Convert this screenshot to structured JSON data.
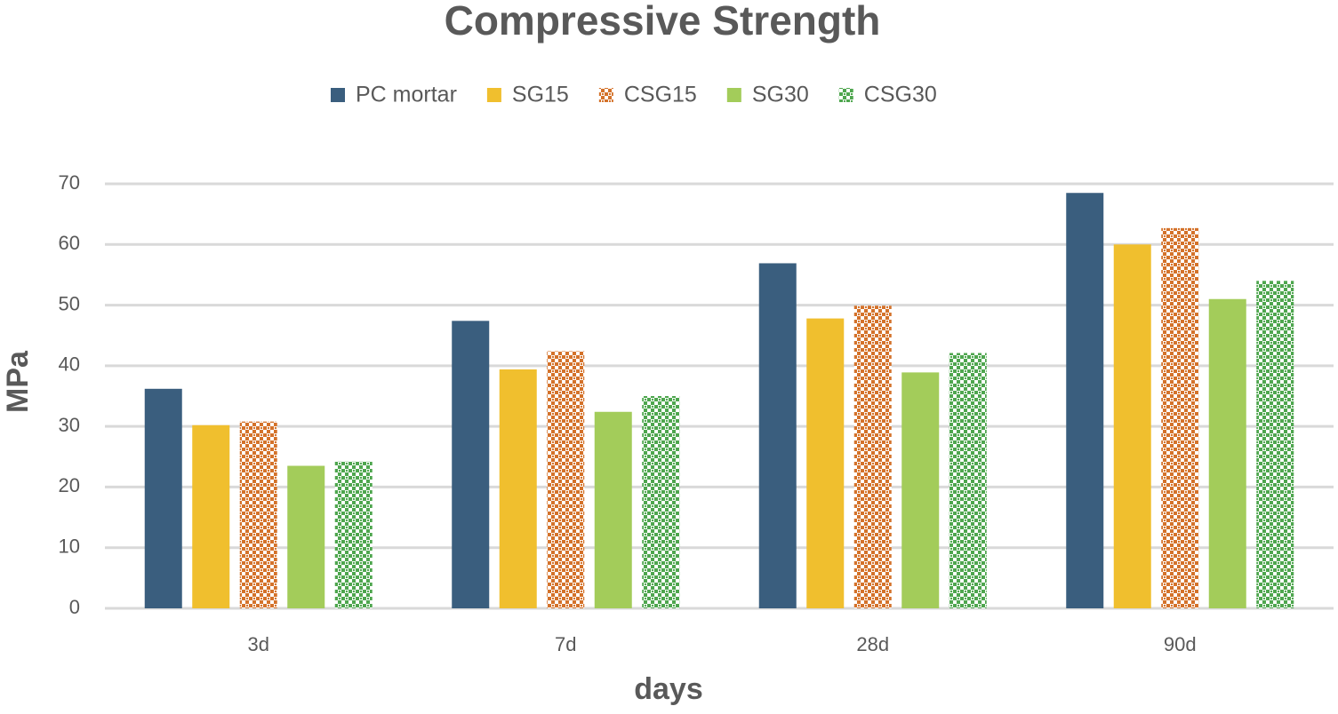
{
  "chart_data": {
    "type": "bar",
    "title": "Compressive Strength",
    "x_label": "days",
    "y_label": "MPa",
    "categories": [
      "3d",
      "7d",
      "28d",
      "90d"
    ],
    "series": [
      {
        "name": "PC mortar",
        "color": "#3a5e7e",
        "pattern": "solid",
        "values": [
          36.2,
          47.4,
          56.9,
          68.5
        ]
      },
      {
        "name": "SG15",
        "color": "#f0bf2e",
        "pattern": "solid",
        "values": [
          30.2,
          39.4,
          47.8,
          60.0
        ]
      },
      {
        "name": "CSG15",
        "color": "#d4722a",
        "pattern": "checker",
        "values": [
          30.8,
          42.4,
          49.9,
          62.7
        ]
      },
      {
        "name": "SG30",
        "color": "#a3cc5a",
        "pattern": "solid",
        "values": [
          23.5,
          32.4,
          38.9,
          51.0
        ]
      },
      {
        "name": "CSG30",
        "color": "#4ea64e",
        "pattern": "checker",
        "values": [
          24.2,
          35.0,
          42.1,
          54.0
        ]
      }
    ],
    "ylim": [
      0,
      70
    ],
    "yticks": [
      0,
      10,
      20,
      30,
      40,
      50,
      60,
      70
    ],
    "grid": true,
    "legend": "top"
  }
}
